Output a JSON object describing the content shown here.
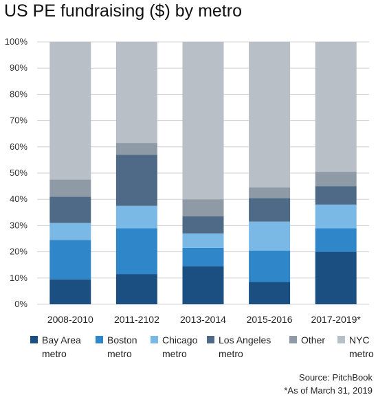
{
  "chart_data": {
    "type": "bar",
    "stacked": true,
    "title": "US PE fundraising ($) by metro",
    "xlabel": "",
    "ylabel": "",
    "ylim": [
      0,
      100
    ],
    "yticks": [
      "0%",
      "10%",
      "20%",
      "30%",
      "40%",
      "50%",
      "60%",
      "70%",
      "80%",
      "90%",
      "100%"
    ],
    "grid": true,
    "legend_position": "bottom",
    "categories": [
      "2008-2010",
      "2011-2102",
      "2013-2014",
      "2015-2016",
      "2017-2019*"
    ],
    "series": [
      {
        "name": "Bay Area metro",
        "color": "#1b4f82",
        "values": [
          9.5,
          11.5,
          14.5,
          8.5,
          20
        ]
      },
      {
        "name": "Boston metro",
        "color": "#2f86c8",
        "values": [
          15,
          17.5,
          7,
          12,
          9
        ]
      },
      {
        "name": "Chicago metro",
        "color": "#7ab8e6",
        "values": [
          6.5,
          8.5,
          5.5,
          11,
          9
        ]
      },
      {
        "name": "Los Angeles metro",
        "color": "#4f6a86",
        "values": [
          10,
          19.5,
          6.5,
          9,
          7
        ]
      },
      {
        "name": "Other",
        "color": "#8e9aa6",
        "values": [
          6.5,
          4.5,
          6.5,
          4,
          5.5
        ]
      },
      {
        "name": "NYC metro",
        "color": "#b8bfc6",
        "values": [
          52.5,
          38.5,
          60,
          55.5,
          49.5
        ]
      }
    ]
  },
  "source": "Source: PitchBook",
  "footnote": "*As of March 31, 2019"
}
